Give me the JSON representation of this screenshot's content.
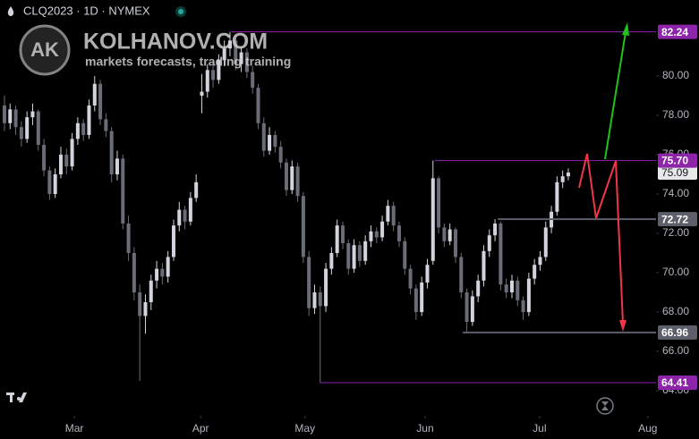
{
  "header": {
    "symbol": "CLQ2023 · 1D · NYMEX"
  },
  "watermark": {
    "logo": "AK",
    "brand": "KOLHANOV.COM",
    "tagline": "markets forecasts, trading training"
  },
  "chart_data": {
    "type": "candlestick",
    "up_color": "#d1d4dc",
    "down_color": "#6a6d78",
    "ohlc": [
      [
        78.5,
        79.0,
        77.2,
        77.6
      ],
      [
        77.6,
        78.6,
        77.3,
        78.3
      ],
      [
        78.3,
        78.5,
        77.0,
        77.4
      ],
      [
        77.4,
        77.7,
        76.4,
        76.8
      ],
      [
        76.8,
        78.2,
        76.6,
        77.9
      ],
      [
        77.9,
        78.6,
        77.5,
        78.2
      ],
      [
        78.2,
        78.3,
        76.2,
        76.5
      ],
      [
        76.5,
        76.8,
        74.9,
        75.2
      ],
      [
        75.2,
        75.4,
        73.7,
        74.0
      ],
      [
        74.0,
        75.3,
        73.8,
        75.0
      ],
      [
        75.0,
        76.4,
        74.8,
        76.0
      ],
      [
        76.0,
        76.3,
        75.0,
        75.4
      ],
      [
        75.4,
        77.1,
        75.2,
        76.8
      ],
      [
        76.8,
        77.9,
        76.5,
        77.6
      ],
      [
        77.6,
        77.8,
        76.7,
        77.0
      ],
      [
        77.0,
        78.8,
        76.8,
        78.5
      ],
      [
        78.5,
        80.0,
        78.2,
        79.6
      ],
      [
        79.6,
        79.8,
        77.5,
        77.8
      ],
      [
        77.8,
        78.1,
        76.9,
        77.2
      ],
      [
        77.2,
        77.4,
        74.6,
        75.0
      ],
      [
        75.0,
        76.2,
        74.7,
        75.8
      ],
      [
        75.8,
        76.0,
        72.2,
        72.5
      ],
      [
        72.5,
        72.9,
        70.6,
        71.0
      ],
      [
        71.0,
        71.3,
        68.6,
        69.0
      ],
      [
        69.0,
        69.4,
        64.5,
        67.8
      ],
      [
        67.8,
        68.9,
        66.9,
        68.5
      ],
      [
        68.5,
        69.9,
        68.1,
        69.6
      ],
      [
        69.6,
        70.6,
        69.2,
        70.2
      ],
      [
        70.2,
        70.5,
        69.4,
        69.8
      ],
      [
        69.8,
        71.1,
        69.5,
        70.8
      ],
      [
        70.8,
        72.7,
        70.6,
        72.4
      ],
      [
        72.4,
        73.6,
        72.1,
        73.2
      ],
      [
        73.2,
        73.4,
        72.2,
        72.6
      ],
      [
        72.6,
        74.1,
        72.4,
        73.8
      ],
      [
        73.8,
        75.0,
        73.6,
        74.6
      ],
      [
        79.0,
        80.1,
        78.1,
        79.2
      ],
      [
        79.2,
        80.6,
        78.9,
        80.3
      ],
      [
        80.3,
        80.7,
        79.4,
        79.8
      ],
      [
        79.8,
        81.1,
        79.6,
        80.8
      ],
      [
        80.8,
        81.8,
        80.5,
        81.4
      ],
      [
        81.4,
        82.24,
        81.0,
        81.8
      ],
      [
        81.8,
        81.9,
        80.3,
        80.6
      ],
      [
        80.6,
        81.5,
        80.2,
        81.2
      ],
      [
        81.2,
        81.4,
        79.9,
        80.2
      ],
      [
        80.2,
        80.5,
        79.1,
        79.4
      ],
      [
        79.4,
        79.6,
        77.3,
        77.6
      ],
      [
        77.6,
        77.9,
        75.9,
        76.2
      ],
      [
        76.2,
        77.4,
        76.0,
        77.0
      ],
      [
        77.0,
        77.2,
        76.1,
        76.4
      ],
      [
        76.4,
        76.7,
        75.3,
        75.6
      ],
      [
        75.6,
        75.8,
        73.9,
        74.2
      ],
      [
        74.2,
        75.7,
        74.0,
        75.4
      ],
      [
        75.4,
        75.6,
        73.6,
        73.9
      ],
      [
        73.9,
        74.1,
        70.5,
        70.8
      ],
      [
        70.8,
        71.1,
        67.8,
        68.2
      ],
      [
        68.2,
        69.4,
        67.9,
        69.0
      ],
      [
        69.0,
        69.3,
        64.41,
        68.3
      ],
      [
        68.3,
        70.5,
        68.0,
        70.2
      ],
      [
        70.2,
        71.3,
        69.9,
        71.0
      ],
      [
        71.0,
        72.7,
        70.8,
        72.4
      ],
      [
        72.4,
        72.6,
        71.2,
        71.5
      ],
      [
        71.5,
        71.7,
        69.9,
        70.2
      ],
      [
        70.2,
        71.7,
        70.0,
        71.4
      ],
      [
        71.4,
        71.6,
        70.3,
        70.6
      ],
      [
        70.6,
        71.9,
        70.4,
        71.6
      ],
      [
        71.6,
        72.4,
        71.3,
        72.1
      ],
      [
        72.1,
        72.3,
        71.5,
        71.8
      ],
      [
        71.8,
        72.9,
        71.6,
        72.6
      ],
      [
        72.6,
        73.7,
        72.4,
        73.4
      ],
      [
        73.4,
        73.6,
        72.1,
        72.4
      ],
      [
        72.4,
        72.6,
        71.3,
        71.6
      ],
      [
        71.6,
        71.8,
        69.9,
        70.2
      ],
      [
        70.2,
        70.4,
        68.9,
        69.2
      ],
      [
        69.2,
        69.4,
        67.6,
        68.0
      ],
      [
        68.0,
        69.8,
        67.8,
        69.5
      ],
      [
        69.5,
        70.7,
        69.2,
        70.4
      ],
      [
        70.6,
        75.7,
        70.4,
        74.8
      ],
      [
        74.8,
        74.9,
        72.0,
        72.3
      ],
      [
        72.3,
        72.5,
        71.3,
        71.6
      ],
      [
        71.6,
        72.5,
        71.4,
        72.2
      ],
      [
        72.2,
        72.3,
        70.5,
        70.8
      ],
      [
        70.8,
        71.0,
        68.7,
        69.0
      ],
      [
        69.0,
        69.2,
        66.96,
        67.5
      ],
      [
        67.5,
        69.1,
        67.3,
        68.8
      ],
      [
        68.8,
        69.9,
        68.5,
        69.6
      ],
      [
        69.6,
        71.4,
        69.3,
        71.1
      ],
      [
        71.1,
        72.2,
        70.8,
        71.9
      ],
      [
        71.9,
        72.72,
        71.6,
        72.5
      ],
      [
        72.5,
        72.6,
        69.1,
        69.4
      ],
      [
        69.4,
        69.7,
        68.7,
        69.0
      ],
      [
        69.0,
        69.9,
        68.7,
        69.6
      ],
      [
        69.6,
        69.8,
        68.3,
        68.6
      ],
      [
        68.6,
        68.8,
        67.6,
        68.0
      ],
      [
        68.0,
        70.0,
        67.8,
        69.7
      ],
      [
        69.7,
        70.7,
        69.4,
        70.4
      ],
      [
        70.4,
        71.1,
        70.1,
        70.8
      ],
      [
        70.8,
        72.6,
        70.6,
        72.3
      ],
      [
        72.3,
        73.4,
        72.0,
        73.1
      ],
      [
        73.1,
        74.9,
        72.9,
        74.6
      ],
      [
        74.6,
        75.2,
        74.3,
        74.9
      ],
      [
        74.9,
        75.3,
        74.7,
        75.09
      ]
    ],
    "ylim": [
      62.73,
      83.86
    ],
    "yticks": [
      {
        "value": 64,
        "label": "64.00"
      },
      {
        "value": 66,
        "label": "66.00"
      },
      {
        "value": 68,
        "label": "68.00"
      },
      {
        "value": 70,
        "label": "70.00"
      },
      {
        "value": 72,
        "label": "72.00"
      },
      {
        "value": 74,
        "label": "74.00"
      },
      {
        "value": 76,
        "label": "76.00"
      },
      {
        "value": 78,
        "label": "78.00"
      },
      {
        "value": 80,
        "label": "80.00"
      }
    ],
    "xlim": [
      -0.79,
      115.56
    ],
    "xticks": [
      {
        "value": 12.4,
        "label": "Mar"
      },
      {
        "value": 34.8,
        "label": "Apr"
      },
      {
        "value": 53.3,
        "label": "May"
      },
      {
        "value": 74.6,
        "label": "Jun"
      },
      {
        "value": 94.9,
        "label": "Jul"
      },
      {
        "value": 114.1,
        "label": "Aug"
      }
    ],
    "last_price": 75.09,
    "levels": [
      {
        "value": 82.24,
        "start": 40.2,
        "color": "#8e24aa"
      },
      {
        "value": 75.7,
        "label": "75.70",
        "start": 76.3,
        "color": "#8e24aa"
      },
      {
        "value": 72.72,
        "start": 87.5,
        "color": "#5d606b"
      },
      {
        "value": 66.96,
        "start": 81.3,
        "color": "#5d606b"
      },
      {
        "value": 64.41,
        "start": 56.0,
        "color": "#8e24aa"
      }
    ]
  }
}
